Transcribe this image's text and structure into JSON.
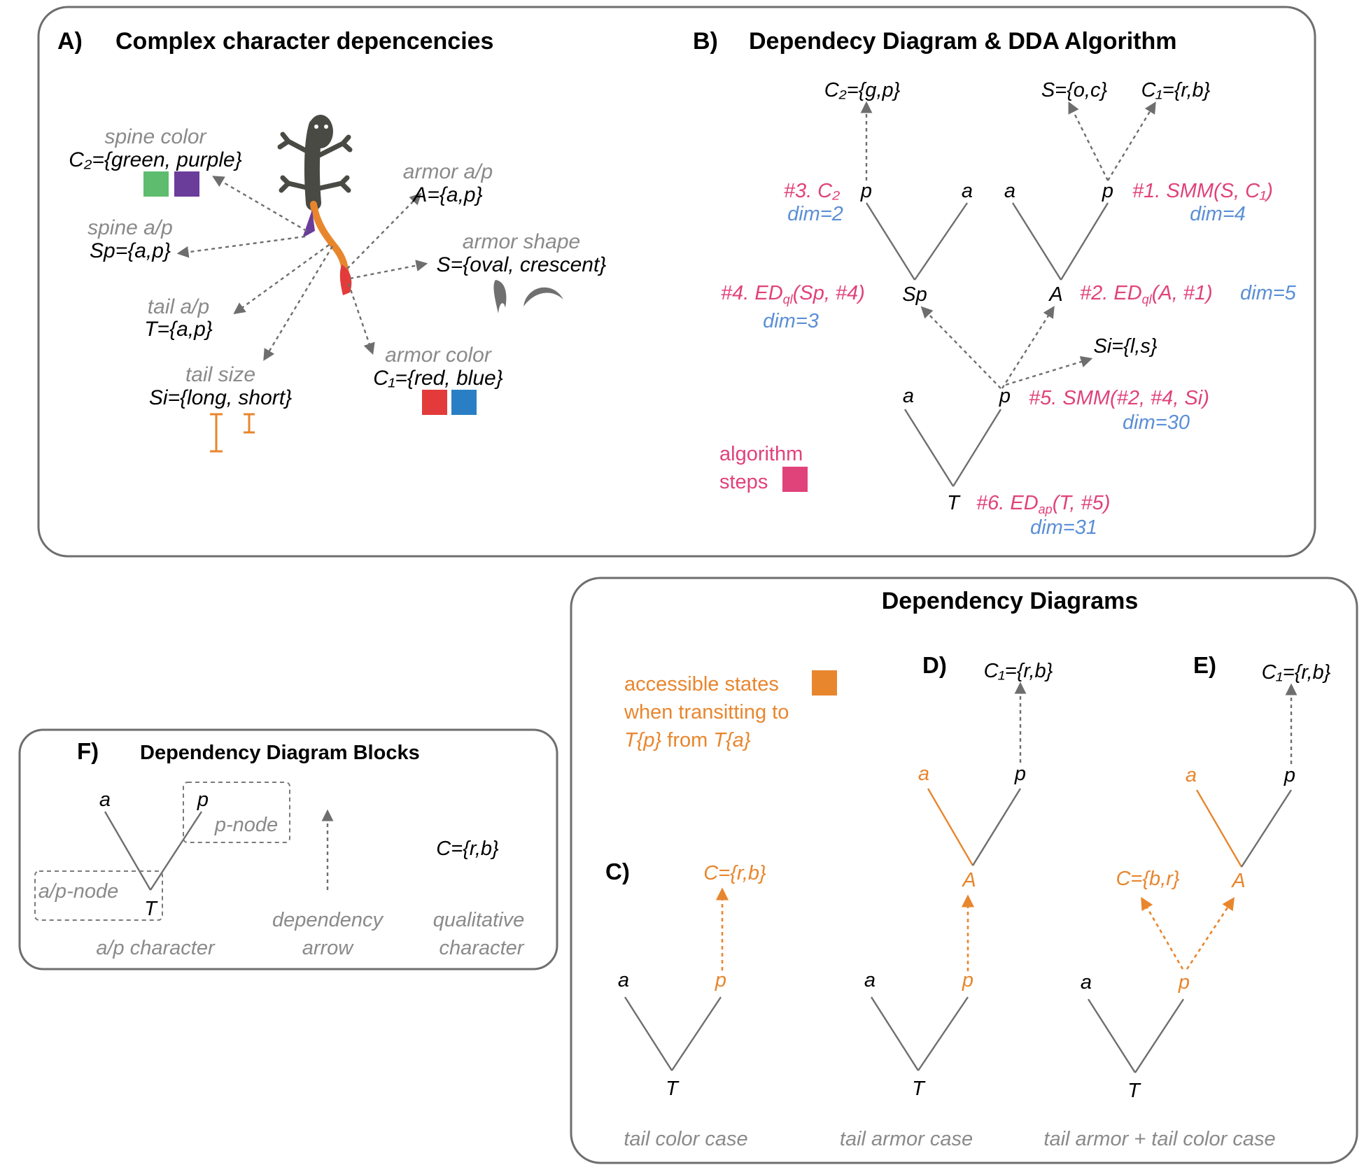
{
  "panel_a": {
    "letter": "A)",
    "title": "Complex character depencencies",
    "spine_color_name": "spine color",
    "spine_color_set": "C₂={green, purple}",
    "spine_ap_name": "spine a/p",
    "spine_ap_set": "Sp={a,p}",
    "tail_ap_name": "tail a/p",
    "tail_ap_set": "T={a,p}",
    "tail_size_name": "tail size",
    "tail_size_set": "Si={long, short}",
    "armor_ap_name": "armor a/p",
    "armor_ap_set": "A={a,p}",
    "armor_shape_name": "armor shape",
    "armor_shape_set": "S={oval, crescent}",
    "armor_color_name": "armor color",
    "armor_color_set": "C₁={red, blue}",
    "colors": {
      "green": "#5ebc6e",
      "purple": "#6a3d9a",
      "red": "#e33b3b",
      "blue": "#2a7fc4",
      "orange": "#e8862e",
      "lizard": "#4a4a45",
      "shape": "#707070"
    }
  },
  "panel_b": {
    "letter": "B)",
    "title": "Dependecy Diagram & DDA Algorithm",
    "c2": "C₂={g,p}",
    "s": "S={o,c}",
    "c1": "C₁={r,b}",
    "si": "Si={l,s}",
    "a": "a",
    "p": "p",
    "sp": "Sp",
    "A": "A",
    "T": "T",
    "step3": "#3. C₂",
    "step3_dim": "dim=2",
    "step1": "#1. SMM(S, C₁)",
    "step1_dim": "dim=4",
    "step4_pre": "#4. ED",
    "step4_sub": "ql",
    "step4_post": "(Sp, #4)",
    "step4_dim": "dim=3",
    "step2_pre": "#2. ED",
    "step2_sub": "ql",
    "step2_post": "(A, #1)",
    "step2_dim": "dim=5",
    "step5": "#5. SMM(#2, #4, Si)",
    "step5_dim": "dim=30",
    "step6_pre": "#6. ED",
    "step6_sub": "ap",
    "step6_post": "(T, #5)",
    "step6_dim": "dim=31",
    "legend_line1": "algorithm",
    "legend_line2": "steps",
    "legend_color": "#e0427a"
  },
  "panel_dd": {
    "title": "Dependency Diagrams",
    "legend_line1": "accessible states",
    "legend_line2": "when transitting to",
    "legend_line3_a": "T{p}",
    "legend_line3_b": " from ",
    "legend_line3_c": "T{a}",
    "legend_color": "#e8862e",
    "c_letter": "C)",
    "d_letter": "D)",
    "e_letter": "E)",
    "c_top": "C={r,b}",
    "d_top": "C₁={r,b}",
    "e_top": "C₁={r,b}",
    "e_left": "C={b,r}",
    "a": "a",
    "p": "p",
    "A": "A",
    "T": "T",
    "c_caption": "tail color case",
    "d_caption": "tail armor case",
    "e_caption": "tail armor + tail color case"
  },
  "panel_f": {
    "letter": "F)",
    "title": "Dependency Diagram Blocks",
    "a": "a",
    "p": "p",
    "T": "T",
    "p_node": "p-node",
    "ap_node": "a/p-node",
    "ap_caption": "a/p character",
    "arrow_caption_1": "dependency",
    "arrow_caption_2": "arrow",
    "qual_set": "C={r,b}",
    "qual_caption_1": "qualitative",
    "qual_caption_2": "character"
  }
}
